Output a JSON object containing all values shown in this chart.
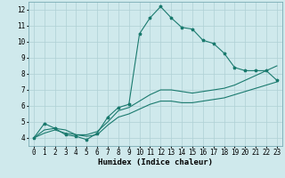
{
  "title": "",
  "xlabel": "Humidex (Indice chaleur)",
  "bg_color": "#cfe9ec",
  "grid_color": "#afd0d5",
  "line_color": "#1a7a6e",
  "xlim": [
    -0.5,
    23.5
  ],
  "ylim": [
    3.5,
    12.5
  ],
  "xticks": [
    0,
    1,
    2,
    3,
    4,
    5,
    6,
    7,
    8,
    9,
    10,
    11,
    12,
    13,
    14,
    15,
    16,
    17,
    18,
    19,
    20,
    21,
    22,
    23
  ],
  "yticks": [
    4,
    5,
    6,
    7,
    8,
    9,
    10,
    11,
    12
  ],
  "line1_x": [
    0,
    1,
    2,
    3,
    4,
    5,
    6,
    7,
    8,
    9,
    10,
    11,
    12,
    13,
    14,
    15,
    16,
    17,
    18,
    19,
    20,
    21,
    22,
    23
  ],
  "line1_y": [
    4.0,
    4.9,
    4.6,
    4.2,
    4.1,
    3.9,
    4.3,
    5.3,
    5.9,
    6.1,
    10.5,
    11.5,
    12.2,
    11.5,
    10.9,
    10.8,
    10.1,
    9.9,
    9.3,
    8.4,
    8.2,
    8.2,
    8.2,
    7.6
  ],
  "line2_x": [
    0,
    1,
    2,
    3,
    4,
    5,
    6,
    7,
    8,
    9,
    10,
    11,
    12,
    13,
    14,
    15,
    16,
    17,
    18,
    19,
    20,
    21,
    22,
    23
  ],
  "line2_y": [
    4.0,
    4.5,
    4.6,
    4.5,
    4.2,
    4.2,
    4.4,
    5.0,
    5.7,
    5.9,
    6.3,
    6.7,
    7.0,
    7.0,
    6.9,
    6.8,
    6.9,
    7.0,
    7.1,
    7.3,
    7.6,
    7.9,
    8.2,
    8.5
  ],
  "line3_x": [
    0,
    1,
    2,
    3,
    4,
    5,
    6,
    7,
    8,
    9,
    10,
    11,
    12,
    13,
    14,
    15,
    16,
    17,
    18,
    19,
    20,
    21,
    22,
    23
  ],
  "line3_y": [
    4.0,
    4.3,
    4.5,
    4.3,
    4.2,
    4.1,
    4.2,
    4.8,
    5.3,
    5.5,
    5.8,
    6.1,
    6.3,
    6.3,
    6.2,
    6.2,
    6.3,
    6.4,
    6.5,
    6.7,
    6.9,
    7.1,
    7.3,
    7.5
  ],
  "title_fontsize": 0,
  "axis_fontsize": 6.5,
  "tick_fontsize": 5.5
}
